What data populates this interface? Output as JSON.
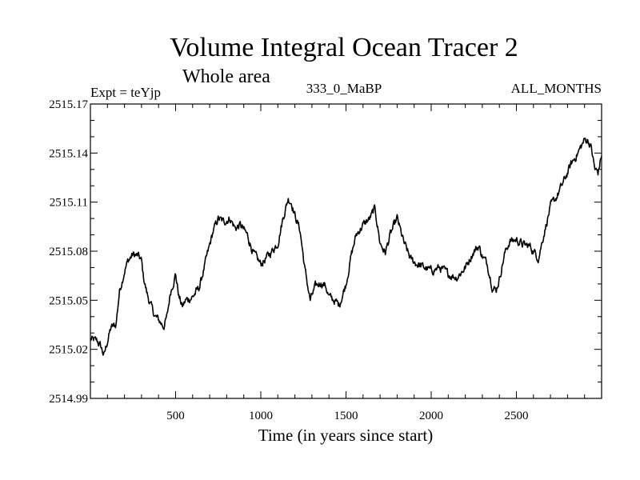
{
  "chart_data": {
    "type": "line",
    "title": "Volume Integral Ocean Tracer 2",
    "subtitle": "Whole area",
    "left_label": "Expt = teYjp",
    "center_label": "333_0_MaBP",
    "right_label": "ALL_MONTHS",
    "xlabel": "Time (in years since start)",
    "ylabel": "",
    "xlim": [
      0,
      3000
    ],
    "ylim": [
      2514.99,
      2515.17
    ],
    "xticks": [
      500,
      1000,
      1500,
      2000,
      2500
    ],
    "xtick_labels": [
      "500",
      "1000",
      "1500",
      "2000",
      "2500"
    ],
    "yticks": [
      2514.99,
      2515.02,
      2515.05,
      2515.08,
      2515.11,
      2515.14,
      2515.17
    ],
    "ytick_labels": [
      "2514.99",
      "2515.02",
      "2515.05",
      "2515.08",
      "2515.11",
      "2515.14",
      "2515.17"
    ],
    "grid": false,
    "series": [
      {
        "name": "Volume Integral Ocean Tracer 2",
        "x": [
          0,
          40,
          60,
          80,
          100,
          120,
          150,
          170,
          200,
          220,
          250,
          280,
          300,
          310,
          330,
          350,
          380,
          400,
          430,
          450,
          470,
          500,
          520,
          540,
          560,
          600,
          640,
          680,
          720,
          750,
          780,
          820,
          850,
          880,
          920,
          960,
          1000,
          1050,
          1100,
          1130,
          1160,
          1180,
          1200,
          1230,
          1260,
          1290,
          1320,
          1350,
          1380,
          1400,
          1430,
          1460,
          1500,
          1530,
          1560,
          1600,
          1640,
          1670,
          1700,
          1730,
          1760,
          1800,
          1840,
          1880,
          1920,
          1960,
          2000,
          2050,
          2100,
          2150,
          2200,
          2250,
          2280,
          2300,
          2330,
          2360,
          2380,
          2400,
          2430,
          2460,
          2500,
          2540,
          2580,
          2600,
          2630,
          2660,
          2700,
          2740,
          2780,
          2820,
          2860,
          2900,
          2920,
          2940,
          2960,
          2980,
          3000
        ],
        "y": [
          2515.026,
          2515.025,
          2515.022,
          2515.016,
          2515.025,
          2515.033,
          2515.035,
          2515.055,
          2515.068,
          2515.074,
          2515.078,
          2515.077,
          2515.074,
          2515.065,
          2515.055,
          2515.048,
          2515.04,
          2515.038,
          2515.034,
          2515.04,
          2515.055,
          2515.066,
          2515.052,
          2515.046,
          2515.05,
          2515.052,
          2515.058,
          2515.075,
          2515.092,
          2515.1,
          2515.098,
          2515.1,
          2515.094,
          2515.096,
          2515.09,
          2515.078,
          2515.072,
          2515.078,
          2515.085,
          2515.1,
          2515.112,
          2515.11,
          2515.102,
          2515.093,
          2515.068,
          2515.05,
          2515.058,
          2515.061,
          2515.059,
          2515.052,
          2515.05,
          2515.047,
          2515.06,
          2515.077,
          2515.09,
          2515.096,
          2515.1,
          2515.106,
          2515.085,
          2515.079,
          2515.09,
          2515.1,
          2515.085,
          2515.075,
          2515.072,
          2515.07,
          2515.068,
          2515.07,
          2515.066,
          2515.064,
          2515.07,
          2515.08,
          2515.083,
          2515.077,
          2515.072,
          2515.058,
          2515.056,
          2515.063,
          2515.078,
          2515.086,
          2515.087,
          2515.084,
          2515.083,
          2515.08,
          2515.076,
          2515.09,
          2515.107,
          2515.114,
          2515.123,
          2515.133,
          2515.14,
          2515.148,
          2515.148,
          2515.143,
          2515.13,
          2515.128,
          2515.139
        ]
      }
    ]
  }
}
